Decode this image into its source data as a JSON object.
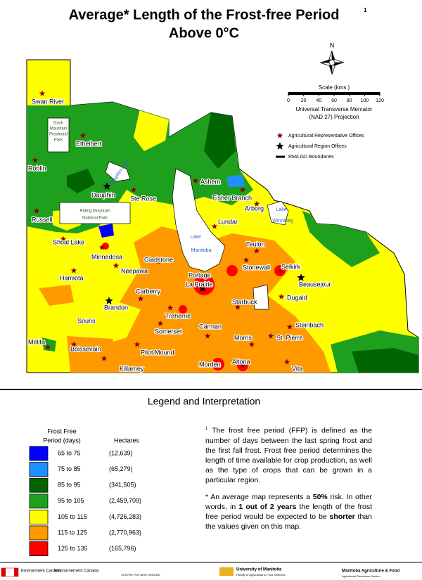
{
  "title": {
    "line1": "Average* Length of the Frost-free Period",
    "footnote_mark": "1",
    "line2": "Above 0°C"
  },
  "compass": "N",
  "scale": {
    "title": "Scale (kms.)",
    "ticks": [
      0,
      20,
      40,
      60,
      80,
      100,
      120
    ],
    "projection": [
      "Universal Transverse Mercator",
      "(NAD 27) Projection"
    ]
  },
  "map_legend": [
    "Agricultural Representative Offices",
    "Agricultural Region Offices",
    "RM/LGD Boundaries"
  ],
  "places": [
    "Swan River",
    "Ethelbert",
    "Roblin",
    "Dauphin",
    "Ste Rose",
    "Ashern",
    "Fisher Branch",
    "Arborg",
    "Russell",
    "Lundar",
    "Shoal Lake",
    "Minnedosa",
    "Teulon",
    "Gladstone",
    "Neepawa",
    "Stonewall",
    "Selkirk",
    "Hamiota",
    "Portage",
    "La Prairie",
    "Beausejour",
    "Carberry",
    "Dugald",
    "Brandon",
    "Starbuck",
    "Treherne",
    "Souris",
    "Steinbach",
    "Carman",
    "Somerset",
    "Morris",
    "St. Pierre",
    "Melita",
    "Boissevain",
    "Pilot Mound",
    "Killarney",
    "Morden",
    "Altona",
    "Vita"
  ],
  "water_labels": [
    "Dauphin Lake",
    "Lake",
    "Manitoba",
    "Lake",
    "Winnipeg"
  ],
  "park_labels": [
    "Duck",
    "Mountain",
    "Provincial",
    "Park",
    "Riding Mountain",
    "National Park"
  ],
  "legend": {
    "heading": "Legend and Interpretation",
    "column_1": [
      "Frost Free",
      "Period (days)"
    ],
    "column_2": "Hectares",
    "rows": [
      {
        "range": "65 to 75",
        "hectares": "(12,639)",
        "color": "#0000ff"
      },
      {
        "range": "75 to 85",
        "hectares": "(65,279)",
        "color": "#1e90ff"
      },
      {
        "range": "85 to 95",
        "hectares": "(341,505)",
        "color": "#006400"
      },
      {
        "range": "95 to 105",
        "hectares": "(2,459,709)",
        "color": "#1ea01e"
      },
      {
        "range": "105 to 115",
        "hectares": "(4,726,283)",
        "color": "#ffff00"
      },
      {
        "range": "115 to 125",
        "hectares": "(2,770,963)",
        "color": "#ff9900"
      },
      {
        "range": "125 to 135",
        "hectares": "(165,796)",
        "color": "#ff0000"
      }
    ]
  },
  "notes": {
    "mark": "1",
    "paragraph_1": "The frost free period (FFP) is defined as the number of days between the last spring frost and the first fall frost. Frost free period determines the length of time available for crop production, as well as the type of crops that can be grown in a particular region.",
    "paragraph_2": [
      "* An average map represents a ",
      "50%",
      " risk. In other words, in ",
      "1 out of 2 years",
      " the length of the frost free period would be expected to be ",
      "shorter",
      " than the values given on this map."
    ]
  },
  "footer": [
    "Environment Canada",
    "Environnement Canada",
    "CENTRE FOR NEW GROUND",
    "University of Manitoba",
    "Faculty of Agricultural & Food Sciences",
    "Manitoba Agriculture & Food",
    "Agricultural Resources Section"
  ]
}
